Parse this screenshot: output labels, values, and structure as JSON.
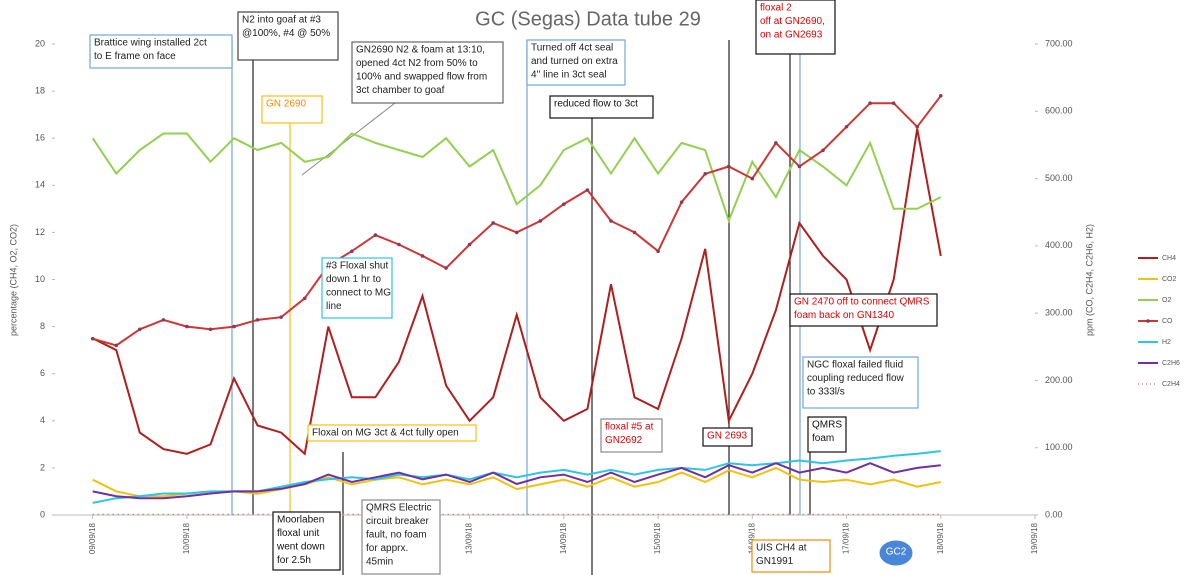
{
  "chart_data": {
    "type": "line",
    "title": "GC (Segas) Data tube 29",
    "y_label": "percentage (CH4, O2, CO2)",
    "y2_label": "ppm (CO, C2H4, C2H6, H2)",
    "xlim": [
      8.6,
      19
    ],
    "xticks": [
      {
        "value": 9,
        "label": "09/09/18"
      },
      {
        "value": 10,
        "label": "10/09/18"
      },
      {
        "value": 11,
        "label": "11/09/18"
      },
      {
        "value": 12,
        "label": "12/09/18"
      },
      {
        "value": 13,
        "label": "13/09/18"
      },
      {
        "value": 14,
        "label": "14/09/18"
      },
      {
        "value": 15,
        "label": "15/09/18"
      },
      {
        "value": 16,
        "label": "16/09/18"
      },
      {
        "value": 17,
        "label": "17/09/18"
      },
      {
        "value": 18,
        "label": "18/09/18"
      },
      {
        "value": 19,
        "label": "19/09/18"
      }
    ],
    "ylim": [
      0,
      20
    ],
    "yticks": [
      0,
      2,
      4,
      6,
      8,
      10,
      12,
      14,
      16,
      18,
      20
    ],
    "y2lim": [
      0,
      700
    ],
    "y2ticks": [
      {
        "value": 0,
        "label": "0.00"
      },
      {
        "value": 100,
        "label": "100.00"
      },
      {
        "value": 200,
        "label": "200.00"
      },
      {
        "value": 300,
        "label": "300.00"
      },
      {
        "value": 400,
        "label": "400.00"
      },
      {
        "value": 500,
        "label": "500.00"
      },
      {
        "value": 600,
        "label": "600.00"
      },
      {
        "value": 700,
        "label": "700.00"
      }
    ],
    "legend": "right",
    "x": [
      9,
      9.25,
      9.5,
      9.75,
      10,
      10.25,
      10.5,
      10.75,
      11,
      11.25,
      11.5,
      11.75,
      12,
      12.25,
      12.5,
      12.75,
      13,
      13.25,
      13.5,
      13.75,
      14,
      14.25,
      14.5,
      14.75,
      15,
      15.25,
      15.5,
      15.75,
      16,
      16.25,
      16.5,
      16.75,
      17,
      17.25,
      17.5,
      17.75,
      18
    ],
    "series": [
      {
        "name": "CH4",
        "color": "#b01e1e",
        "values": [
          7.5,
          7.0,
          3.5,
          2.8,
          2.6,
          3.0,
          5.8,
          3.8,
          3.5,
          2.6,
          8.0,
          5.0,
          5.0,
          6.5,
          9.3,
          5.5,
          4.0,
          5.0,
          8.5,
          5.0,
          4.0,
          4.5,
          9.8,
          5.0,
          4.5,
          7.5,
          11.3,
          4.0,
          6.0,
          8.7,
          12.4,
          11.0,
          10.0,
          7.0,
          10.0,
          16.4,
          11.0
        ]
      },
      {
        "name": "CO2",
        "color": "#f2c10f",
        "values": [
          1.5,
          1.0,
          0.8,
          0.8,
          0.9,
          1.0,
          1.0,
          0.9,
          1.1,
          1.3,
          1.6,
          1.3,
          1.5,
          1.6,
          1.3,
          1.5,
          1.3,
          1.6,
          1.1,
          1.3,
          1.5,
          1.2,
          1.6,
          1.2,
          1.4,
          1.8,
          1.4,
          1.9,
          1.6,
          2.0,
          1.5,
          1.4,
          1.5,
          1.3,
          1.5,
          1.2,
          1.4
        ]
      },
      {
        "name": "O2",
        "color": "#92d050",
        "values": [
          16.0,
          14.5,
          15.5,
          16.2,
          16.2,
          15.0,
          16.0,
          15.5,
          15.8,
          15.0,
          15.2,
          16.2,
          15.8,
          15.5,
          15.2,
          16.0,
          14.8,
          15.5,
          13.2,
          14.0,
          15.5,
          16.0,
          14.5,
          16.0,
          14.5,
          15.8,
          15.5,
          12.5,
          15.0,
          13.5,
          15.5,
          14.8,
          14.0,
          15.8,
          13.0,
          13.0,
          13.5
        ]
      },
      {
        "name": "CO",
        "color": "#d03535",
        "axis": "y2",
        "markers": true,
        "values": [
          262,
          252,
          276,
          290,
          280,
          276,
          280,
          290,
          294,
          322,
          371,
          392,
          416,
          402,
          385,
          367,
          402,
          434,
          420,
          437,
          462,
          483,
          437,
          420,
          392,
          465,
          507,
          518,
          500,
          553,
          518,
          542,
          577,
          612,
          612,
          577,
          623
        ]
      },
      {
        "name": "H2",
        "color": "#2ec4e6",
        "axis": "y2",
        "values": [
          18,
          25,
          28,
          32,
          32,
          35,
          35,
          35,
          42,
          49,
          53,
          56,
          53,
          60,
          56,
          60,
          53,
          63,
          56,
          63,
          67,
          60,
          67,
          60,
          67,
          70,
          67,
          77,
          74,
          77,
          81,
          77,
          81,
          84,
          88,
          91,
          95
        ]
      },
      {
        "name": "C2H6",
        "color": "#7030a0",
        "axis": "y2",
        "values": [
          35,
          28,
          25,
          25,
          28,
          32,
          35,
          35,
          39,
          46,
          60,
          49,
          56,
          63,
          53,
          60,
          49,
          63,
          46,
          56,
          60,
          49,
          63,
          49,
          60,
          70,
          56,
          74,
          63,
          77,
          63,
          70,
          63,
          77,
          63,
          70,
          74
        ]
      },
      {
        "name": "C2H4",
        "color": "#a0522d",
        "axis": "y2",
        "dotted": true,
        "values": [
          1,
          1,
          1,
          1,
          1,
          1,
          1,
          1,
          1,
          1,
          1,
          1,
          1,
          1,
          1,
          1,
          1,
          1,
          1,
          1,
          1,
          1,
          1,
          1,
          1,
          1,
          1,
          1,
          1,
          1,
          1,
          1,
          1,
          1,
          1,
          1,
          1
        ]
      }
    ],
    "annotations": [
      {
        "lines": [
          "Brattice wing  installed 2ct",
          "to E frame on face"
        ],
        "color": "#222222",
        "border": "#6fa8dc"
      },
      {
        "lines": [
          "N2 into goaf at #3",
          "@100%, #4 @ 50%"
        ],
        "color": "#222222",
        "border": "#444444"
      },
      {
        "lines": [
          "GN2690 N2 & foam at 13:10,",
          "opened 4ct N2 from 50% to",
          "100% and swapped flow from",
          "3ct chamber to goaf"
        ],
        "color": "#222222",
        "border": "#666666"
      },
      {
        "lines": [
          "GN 2690"
        ],
        "color": "#f28c00",
        "border": "#f2c10f"
      },
      {
        "lines": [
          "Turned off 4ct seal",
          "and turned on extra",
          "4'' line in 3ct seal"
        ],
        "color": "#222222",
        "border": "#6fa8dc"
      },
      {
        "lines": [
          "reduced flow to 3ct"
        ],
        "color": "#111111",
        "border": "#111111"
      },
      {
        "lines": [
          "floxal 2",
          "off at GN2690,",
          "on at GN2693"
        ],
        "color": "#e00000",
        "border": "#111111"
      },
      {
        "lines": [
          "#3 Floxal shut",
          "down 1 hr to",
          "connect to MG",
          "line"
        ],
        "color": "#222222",
        "border": "#2ec4e6"
      },
      {
        "lines": [
          "GN 2470 off to connect QMRS",
          "foam back on GN1340"
        ],
        "color": "#e00000",
        "border": "#111111"
      },
      {
        "lines": [
          "NGC floxal failed fluid",
          "coupling reduced flow",
          "to 333l/s"
        ],
        "color": "#222222",
        "border": "#6fa8dc"
      },
      {
        "lines": [
          "Floxal on MG 3ct & 4ct fully open"
        ],
        "color": "#222222",
        "border": "#f2c10f"
      },
      {
        "lines": [
          "floxal #5 at",
          "GN2692"
        ],
        "color": "#e00000",
        "border": "#888888"
      },
      {
        "lines": [
          "GN 2693"
        ],
        "color": "#e00000",
        "border": "#111111"
      },
      {
        "lines": [
          "QMRS",
          "foam"
        ],
        "color": "#111111",
        "border": "#111111"
      },
      {
        "lines": [
          "Moorlaben",
          "floxal unit",
          "went down",
          "for 2.5h"
        ],
        "color": "#111111",
        "border": "#111111"
      },
      {
        "lines": [
          "QMRS Electric",
          "circuit breaker",
          "fault, no foam",
          "for apprx.",
          "45min"
        ],
        "color": "#222222",
        "border": "#888888"
      },
      {
        "lines": [
          "UIS CH4 at",
          "GN1991"
        ],
        "color": "#222222",
        "border": "#f28c00"
      },
      {
        "lines": [
          "GC2"
        ],
        "color": "#ffffff",
        "border": "#4a86d8"
      }
    ]
  }
}
